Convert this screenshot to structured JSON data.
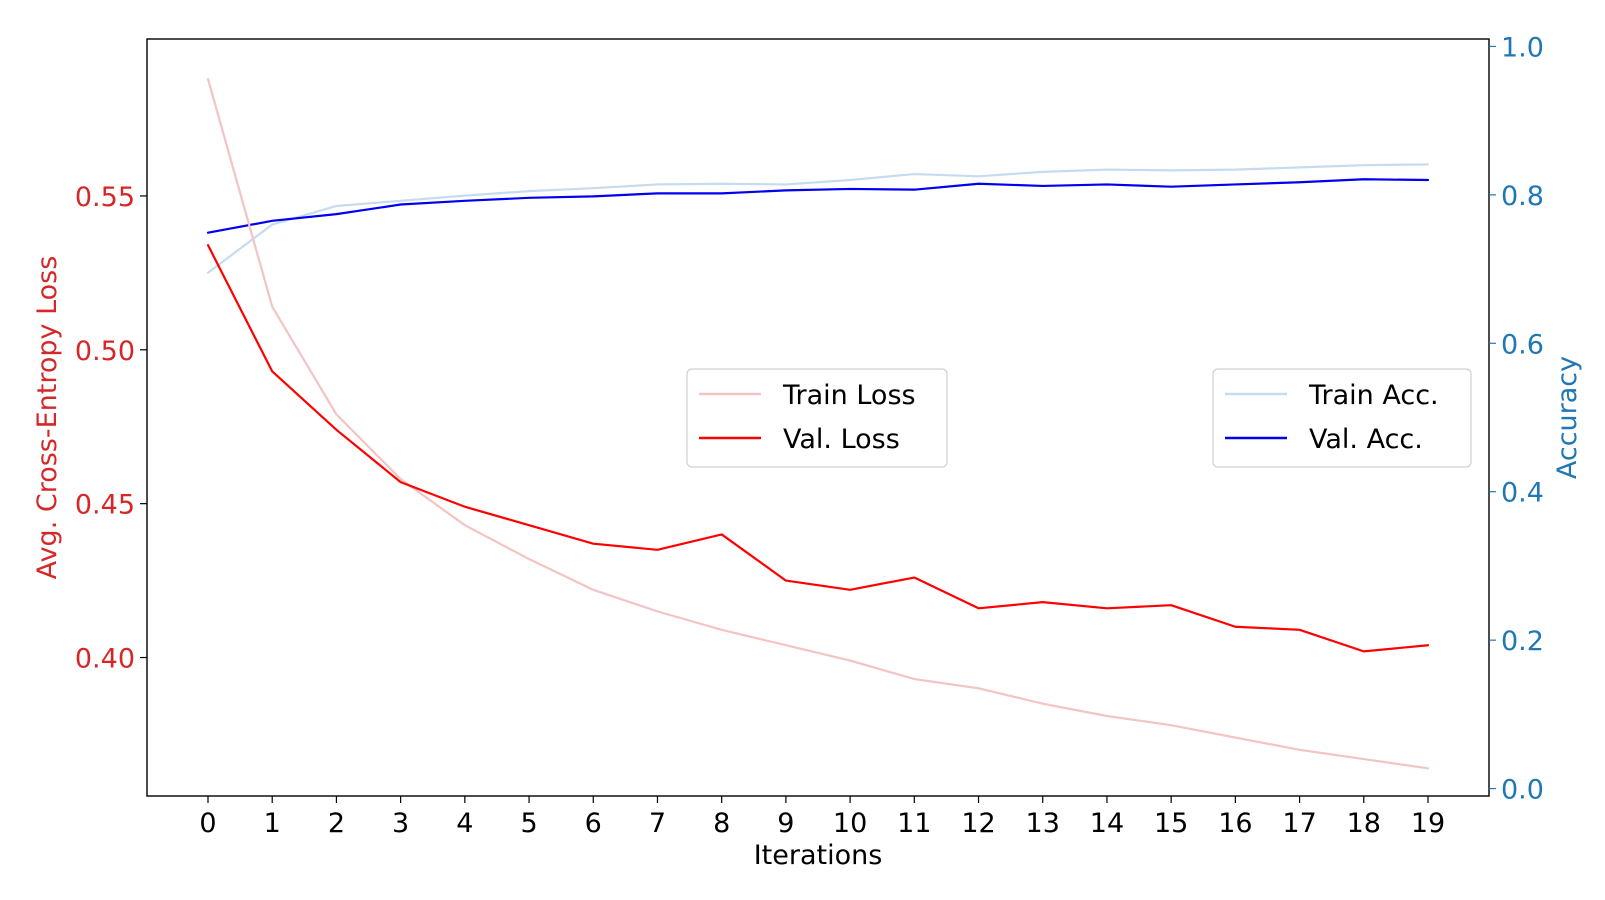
{
  "chart_data": {
    "type": "line",
    "x": [
      0,
      1,
      2,
      3,
      4,
      5,
      6,
      7,
      8,
      9,
      10,
      11,
      12,
      13,
      14,
      15,
      16,
      17,
      18,
      19
    ],
    "xlabel": "Iterations",
    "ylabel_left": "Avg. Cross-Entropy Loss",
    "ylabel_right": "Accuracy",
    "ylim_left": [
      0.355,
      0.601
    ],
    "ylim_right": [
      -0.01,
      1.01
    ],
    "yticks_left": [
      "0.40",
      "0.45",
      "0.50",
      "0.55"
    ],
    "yticks_right": [
      "0.0",
      "0.2",
      "0.4",
      "0.6",
      "0.8",
      "1.0"
    ],
    "grid": false,
    "series_left": [
      {
        "name": "Train Loss",
        "color": "#f4c3c3",
        "values": [
          0.588,
          0.514,
          0.479,
          0.458,
          0.443,
          0.432,
          0.422,
          0.415,
          0.409,
          0.404,
          0.399,
          0.393,
          0.39,
          0.385,
          0.381,
          0.378,
          0.374,
          0.37,
          0.367,
          0.364
        ]
      },
      {
        "name": "Val. Loss",
        "color": "#ff0000",
        "values": [
          0.534,
          0.493,
          0.474,
          0.457,
          0.449,
          0.443,
          0.437,
          0.435,
          0.44,
          0.425,
          0.422,
          0.426,
          0.416,
          0.418,
          0.416,
          0.417,
          0.41,
          0.409,
          0.402,
          0.404
        ]
      }
    ],
    "series_right": [
      {
        "name": "Train Acc.",
        "color": "#c6dbef",
        "values": [
          0.695,
          0.76,
          0.785,
          0.792,
          0.799,
          0.805,
          0.809,
          0.814,
          0.815,
          0.814,
          0.82,
          0.828,
          0.825,
          0.831,
          0.834,
          0.833,
          0.834,
          0.837,
          0.84,
          0.841
        ]
      },
      {
        "name": "Val. Acc.",
        "color": "#0000ee",
        "values": [
          0.749,
          0.765,
          0.774,
          0.787,
          0.792,
          0.796,
          0.798,
          0.802,
          0.802,
          0.806,
          0.808,
          0.807,
          0.815,
          0.812,
          0.814,
          0.811,
          0.814,
          0.817,
          0.821,
          0.82
        ]
      }
    ],
    "legends": [
      {
        "placement": "center",
        "entries": [
          "Train Loss",
          "Val. Loss"
        ]
      },
      {
        "placement": "center-right",
        "entries": [
          "Train Acc.",
          "Val. Acc."
        ]
      }
    ],
    "colors": {
      "left_axis": "#d62728",
      "right_axis": "#1f77b4",
      "frame": "#000000"
    }
  }
}
